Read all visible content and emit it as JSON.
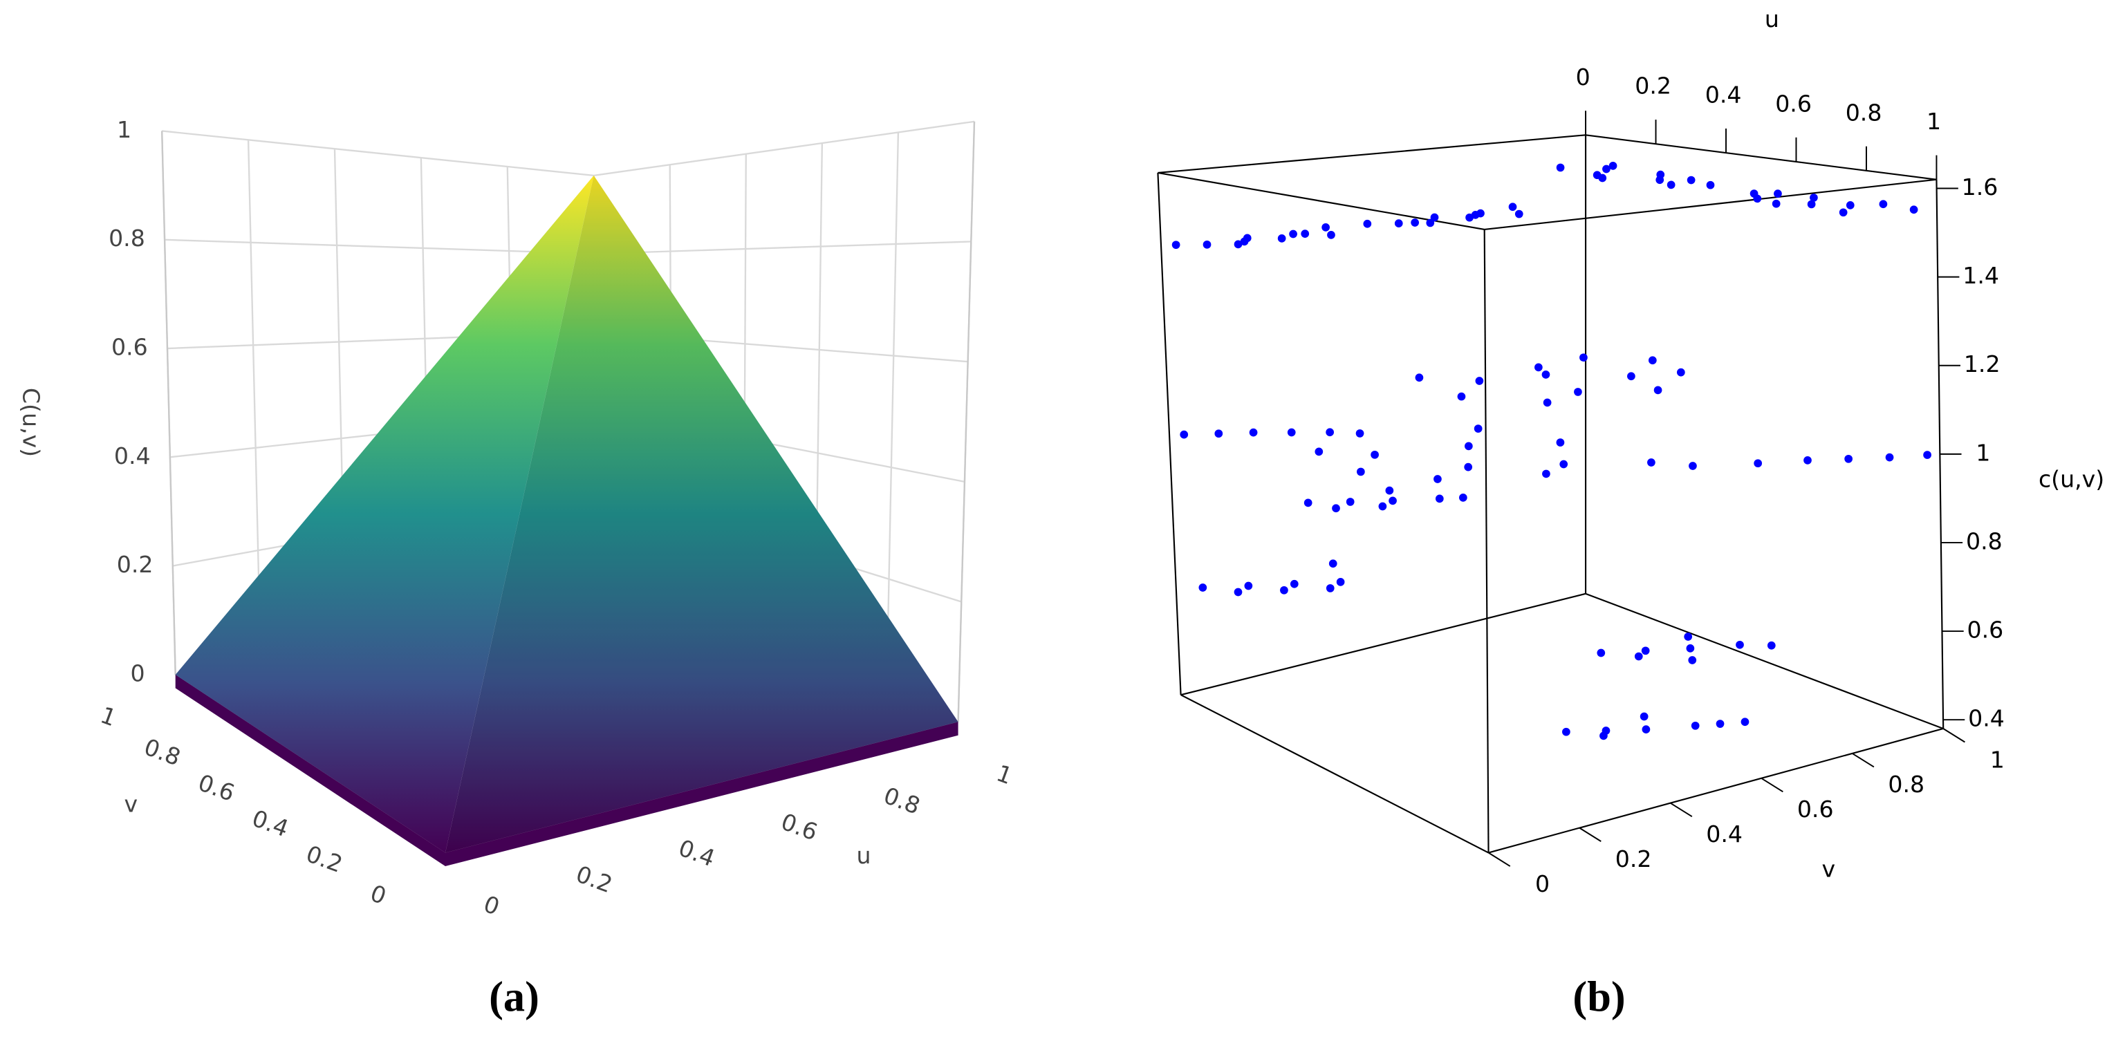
{
  "chart_data": [
    {
      "type": "surface",
      "label": "(a)",
      "xlabel": "u",
      "ylabel": "v",
      "zlabel": "C(u,v)",
      "xlim": [
        0,
        1
      ],
      "ylim": [
        0,
        1
      ],
      "zlim": [
        0,
        1
      ],
      "xticks": [
        0,
        0.2,
        0.4,
        0.6,
        0.8,
        1
      ],
      "yticks": [
        0,
        0.2,
        0.4,
        0.6,
        0.8,
        1
      ],
      "zticks": [
        0,
        0.2,
        0.4,
        0.6,
        0.8,
        1
      ],
      "colorscale": [
        "#440154",
        "#3b528b",
        "#21908d",
        "#5dc963",
        "#fde725"
      ],
      "grid": true
    },
    {
      "type": "scatter3d",
      "label": "(b)",
      "xlabel": "u",
      "ylabel": "v",
      "zlabel": "c(u,v)",
      "xlim": [
        0,
        1
      ],
      "ylim": [
        0,
        1
      ],
      "zlim": [
        0.38,
        1.62
      ],
      "xticks": [
        0,
        0.2,
        0.4,
        0.6,
        0.8,
        1
      ],
      "yticks": [
        0,
        0.2,
        0.4,
        0.6,
        0.8,
        1
      ],
      "zticks": [
        0.4,
        0.6,
        0.8,
        1,
        1.2,
        1.4,
        1.6
      ],
      "series": [
        {
          "color": "#0000ff",
          "x": [
            0.05,
            0.12,
            0.18,
            0.25,
            0.31,
            0.38,
            0.43,
            0.22,
            0.09,
            0.35,
            0.58,
            0.64,
            0.7,
            0.77,
            0.83,
            0.9,
            0.96,
            0.72,
            0.86,
            0.61,
            0.02,
            0.05,
            0.08,
            0.03,
            0.07,
            0.04,
            0.09,
            0.01,
            0.06,
            0.05,
            0.02,
            0.05,
            0.08,
            0.03,
            0.07,
            0.04,
            0.09,
            0.01,
            0.06,
            0.05,
            0.32,
            0.41,
            0.5,
            0.6,
            0.68,
            0.36,
            0.46,
            0.55,
            0.64,
            0.44,
            0.58,
            0.38,
            0.27,
            0.35,
            0.44,
            0.53,
            0.62,
            0.71,
            0.78,
            0.3,
            0.48,
            0.57,
            0.66,
            0.4,
            0.02,
            0.05,
            0.08,
            0.12,
            0.16,
            0.2,
            0.84,
            0.88,
            0.92,
            0.96,
            0.99,
            0.06,
            0.1,
            0.14,
            0.18,
            0.08,
            0.12,
            0.16,
            0.2,
            0.06,
            0.1,
            0.14,
            0.18,
            0.08,
            0.12,
            0.16,
            0.2,
            0.82,
            0.86,
            0.9,
            0.94,
            0.98,
            0.84,
            0.88,
            0.96,
            0.82,
            0.86,
            0.9,
            0.94,
            0.98,
            0.84,
            0.88,
            0.96
          ],
          "y": [
            0.9,
            0.95,
            0.88,
            0.97,
            0.92,
            0.89,
            0.94,
            0.86,
            0.99,
            0.96,
            0.92,
            0.88,
            0.96,
            0.9,
            0.94,
            0.87,
            0.98,
            0.86,
            0.99,
            0.95,
            0.02,
            0.07,
            0.12,
            0.18,
            0.23,
            0.28,
            0.33,
            0.38,
            0.15,
            0.3,
            0.47,
            0.52,
            0.57,
            0.62,
            0.67,
            0.72,
            0.77,
            0.82,
            0.55,
            0.7,
            0.35,
            0.42,
            0.31,
            0.5,
            0.62,
            0.7,
            0.78,
            0.66,
            0.4,
            0.55,
            0.75,
            0.58,
            0.15,
            0.22,
            0.12,
            0.3,
            0.45,
            0.58,
            0.62,
            0.5,
            0.55,
            0.2,
            0.38,
            0.4,
            0.02,
            0.08,
            0.14,
            0.2,
            0.26,
            0.3,
            0.72,
            0.8,
            0.86,
            0.92,
            0.98,
            0.28,
            0.35,
            0.42,
            0.5,
            0.46,
            0.3,
            0.38,
            0.54,
            0.02,
            0.1,
            0.18,
            0.26,
            0.32,
            0.06,
            0.14,
            0.22,
            0.38,
            0.45,
            0.52,
            0.6,
            0.64,
            0.56,
            0.42,
            0.48,
            0.3,
            0.36,
            0.42,
            0.5,
            0.58,
            0.46,
            0.34,
            0.54
          ],
          "z": [
            1.55,
            1.55,
            1.55,
            1.55,
            1.55,
            1.55,
            1.55,
            1.55,
            1.55,
            1.55,
            1.55,
            1.55,
            1.55,
            1.55,
            1.55,
            1.55,
            1.55,
            1.55,
            1.55,
            1.55,
            1.45,
            1.45,
            1.45,
            1.45,
            1.45,
            1.45,
            1.45,
            1.45,
            1.45,
            1.45,
            1.45,
            1.45,
            1.45,
            1.45,
            1.45,
            1.45,
            1.45,
            1.45,
            1.45,
            1.45,
            1.15,
            1.15,
            1.15,
            1.15,
            1.15,
            1.15,
            1.15,
            1.15,
            1.15,
            1.15,
            1.15,
            1.15,
            1,
            1,
            1,
            1,
            1,
            1,
            1,
            1,
            1,
            1,
            1,
            1,
            1,
            1,
            1,
            1,
            1,
            1,
            1,
            1,
            1,
            1,
            1,
            0.8,
            0.8,
            0.8,
            0.8,
            0.8,
            0.8,
            0.8,
            0.8,
            0.65,
            0.65,
            0.65,
            0.65,
            0.65,
            0.65,
            0.65,
            0.65,
            0.65,
            0.65,
            0.65,
            0.65,
            0.65,
            0.65,
            0.65,
            0.65,
            0.5,
            0.5,
            0.5,
            0.5,
            0.5,
            0.5,
            0.5,
            0.5
          ]
        }
      ]
    }
  ]
}
